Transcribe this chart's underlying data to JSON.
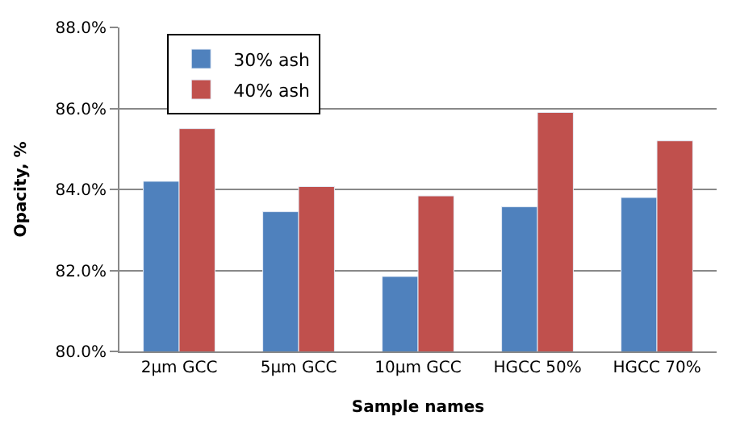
{
  "chart_data": {
    "type": "bar",
    "xlabel": "Sample names",
    "ylabel": "Opacity, %",
    "categories": [
      "2µm GCC",
      "5µm GCC",
      "10µm GCC",
      "HGCC 50%",
      "HGCC 70%"
    ],
    "series": [
      {
        "name": "30% ash",
        "color": "#4f81bd",
        "values": [
          84.2,
          83.45,
          81.85,
          83.57,
          83.8
        ]
      },
      {
        "name": "40% ash",
        "color": "#c0504d",
        "values": [
          85.5,
          84.07,
          83.84,
          85.9,
          85.2
        ]
      }
    ],
    "ylim": [
      80,
      88
    ],
    "yticks": [
      {
        "value": 80,
        "label": "80.0%"
      },
      {
        "value": 82,
        "label": "82.0%"
      },
      {
        "value": 84,
        "label": "84.0%"
      },
      {
        "value": 86,
        "label": "86.0%"
      },
      {
        "value": 88,
        "label": "88.0%"
      }
    ],
    "grid": "y",
    "legend": "top left"
  }
}
